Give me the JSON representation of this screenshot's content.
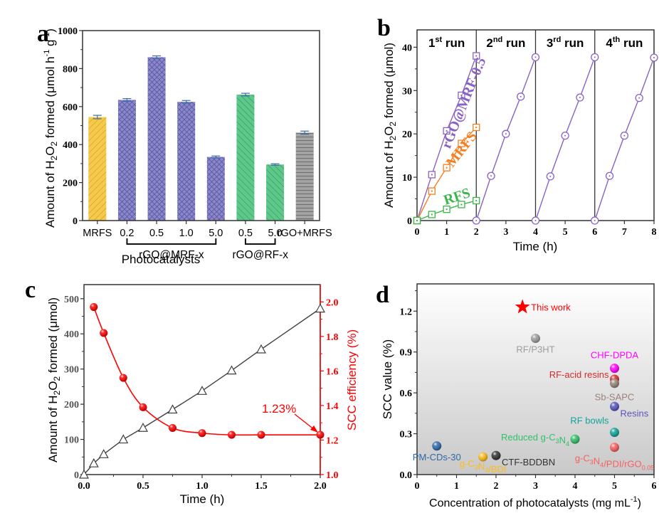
{
  "chart_data": [
    {
      "panel": "a",
      "type": "bar",
      "title": "",
      "panel_label": "a",
      "xlabel": "Photocatalysts",
      "ylabel": "Amount of H2O2 formed (μmol h-1 g-1)",
      "ylim": [
        0,
        1000
      ],
      "yticks": [
        0,
        200,
        400,
        600,
        800,
        1000
      ],
      "categories": [
        "MRFS",
        "0.2",
        "0.5",
        "1.0",
        "5.0",
        "0.5",
        "5.0",
        "rGO+MRFS"
      ],
      "values": [
        545,
        635,
        860,
        625,
        335,
        663,
        295,
        463
      ],
      "errors": [
        9,
        7,
        7,
        7,
        5,
        7,
        4,
        8
      ],
      "bar_colors": [
        "#f7c948",
        "#8b87cf",
        "#8b87cf",
        "#8b87cf",
        "#8b87cf",
        "#5cc98a",
        "#5cc98a",
        "#9a9a9a"
      ],
      "groups": [
        {
          "label": "rGO@MRF-x",
          "from": 1,
          "to": 4
        },
        {
          "label": "rGO@RF-x",
          "from": 5,
          "to": 6
        }
      ]
    },
    {
      "panel": "b",
      "type": "line",
      "panel_label": "b",
      "xlabel": "Time (h)",
      "ylabel": "Amount of H2O2 formed (μmol)",
      "xlim": [
        0,
        8
      ],
      "ylim": [
        0,
        44
      ],
      "xticks": [
        0,
        1,
        2,
        3,
        4,
        5,
        6,
        7,
        8
      ],
      "yticks": [
        0,
        10,
        20,
        30,
        40
      ],
      "run_labels": [
        {
          "num": "1",
          "sup": "st",
          "text": "run"
        },
        {
          "num": "2",
          "sup": "nd",
          "text": "run"
        },
        {
          "num": "3",
          "sup": "rd",
          "text": "run"
        },
        {
          "num": "4",
          "sup": "th",
          "text": "run"
        }
      ],
      "run_dividers": [
        2,
        4,
        6
      ],
      "series": [
        {
          "name": "rGO@MRF-0.5",
          "color": "#8a62c4",
          "marker": "square",
          "x": [
            0,
            0.5,
            1,
            1.5,
            2
          ],
          "y": [
            0,
            10.6,
            20.7,
            28.9,
            38.0
          ]
        },
        {
          "name": "MRFS",
          "color": "#f47f20",
          "marker": "square",
          "x": [
            0,
            0.5,
            1,
            1.5,
            2
          ],
          "y": [
            0,
            6.8,
            12.2,
            17.8,
            21.5
          ]
        },
        {
          "name": "RFS",
          "color": "#3cb54a",
          "marker": "square",
          "x": [
            0,
            0.5,
            1,
            1.5,
            2
          ],
          "y": [
            0,
            1.4,
            2.6,
            3.7,
            4.6
          ]
        },
        {
          "name": "rGO@MRF-0.5 run 2",
          "color": "#8a62c4",
          "marker": "circle",
          "x": [
            2,
            2.5,
            3,
            3.5,
            4
          ],
          "y": [
            0,
            10.3,
            20.0,
            28.6,
            37.7
          ]
        },
        {
          "name": "rGO@MRF-0.5 run 3",
          "color": "#8a62c4",
          "marker": "circle",
          "x": [
            4,
            4.5,
            5,
            5.5,
            6
          ],
          "y": [
            0,
            10.2,
            19.6,
            28.4,
            37.7
          ]
        },
        {
          "name": "rGO@MRF-0.5 run 4",
          "color": "#8a62c4",
          "marker": "circle",
          "x": [
            6,
            6.5,
            7,
            7.5,
            8
          ],
          "y": [
            0,
            10.3,
            19.6,
            28.3,
            37.6
          ]
        }
      ]
    },
    {
      "panel": "c",
      "type": "line",
      "panel_label": "c",
      "xlabel": "Time (h)",
      "ylabel": "Amount of H2O2 formed (μmol)",
      "ylabel_right": "SCC efficiency (%)",
      "xlim": [
        0,
        2.0
      ],
      "ylim": [
        0,
        540
      ],
      "ylim_right": [
        1.0,
        2.1
      ],
      "xticks": [
        0.0,
        0.5,
        1.0,
        1.5,
        2.0
      ],
      "yticks": [
        0,
        100,
        200,
        300,
        400,
        500
      ],
      "yticks_right": [
        1.0,
        1.2,
        1.4,
        1.6,
        1.8,
        2.0
      ],
      "annotation": "1.23%",
      "series": [
        {
          "name": "H2O2 amount",
          "axis": "left",
          "color": "#404040",
          "marker": "triangle",
          "x": [
            0,
            0.083,
            0.167,
            0.333,
            0.5,
            0.75,
            1.0,
            1.25,
            1.5,
            2.0
          ],
          "y": [
            0,
            32,
            58,
            100,
            133,
            185,
            238,
            296,
            356,
            472
          ]
        },
        {
          "name": "SCC efficiency",
          "axis": "right",
          "color": "#ff0000",
          "marker": "sphere",
          "x": [
            0.083,
            0.167,
            0.333,
            0.5,
            0.75,
            1.0,
            1.25,
            1.5,
            2.0
          ],
          "y": [
            1.97,
            1.82,
            1.56,
            1.39,
            1.27,
            1.24,
            1.23,
            1.23,
            1.23
          ]
        }
      ]
    },
    {
      "panel": "d",
      "type": "scatter",
      "panel_label": "d",
      "xlabel": "Concentration of photocatalysts (mg mL-1)",
      "ylabel": "SCC value (%)",
      "xlim": [
        0,
        6
      ],
      "ylim": [
        0,
        1.4
      ],
      "xticks": [
        0,
        1,
        2,
        3,
        4,
        5,
        6
      ],
      "yticks": [
        "0.0",
        "0.3",
        "0.6",
        "0.9",
        "1.2"
      ],
      "points": [
        {
          "label": "This work",
          "x": 2.67,
          "y": 1.23,
          "color": "#ff0000",
          "marker": "star"
        },
        {
          "label": "RF/P3HT",
          "x": 3.0,
          "y": 1.0,
          "color": "#9e9e9e",
          "marker": "sphere"
        },
        {
          "label": "CHF-DPDA",
          "x": 5.0,
          "y": 0.78,
          "color": "#ff00ff",
          "marker": "sphere"
        },
        {
          "label": "RF-acid resins",
          "x": 5.0,
          "y": 0.7,
          "color": "#d62b2b",
          "marker": "sphere"
        },
        {
          "label": "Sb-SAPC",
          "x": 5.0,
          "y": 0.67,
          "color": "#9a8478",
          "marker": "sphere"
        },
        {
          "label": "Resins",
          "x": 5.0,
          "y": 0.5,
          "color": "#5a55c0",
          "marker": "sphere"
        },
        {
          "label": "RF bowls",
          "x": 5.0,
          "y": 0.31,
          "color": "#13a39a",
          "marker": "sphere"
        },
        {
          "label": "Reduced g-C3N4",
          "x": 4.0,
          "y": 0.26,
          "color": "#33c06a",
          "marker": "sphere"
        },
        {
          "label": "g-C3N4/PDI/rGO0.05",
          "x": 5.0,
          "y": 0.2,
          "color": "#f86060",
          "marker": "sphere"
        },
        {
          "label": "PM-CDs-30",
          "x": 0.5,
          "y": 0.21,
          "color": "#2e6aa8",
          "marker": "sphere"
        },
        {
          "label": "g-C3N4/BDI",
          "x": 1.67,
          "y": 0.13,
          "color": "#ffbb1a",
          "marker": "sphere"
        },
        {
          "label": "CTF-BDDBN",
          "x": 2.0,
          "y": 0.14,
          "color": "#333333",
          "marker": "sphere"
        }
      ]
    }
  ]
}
